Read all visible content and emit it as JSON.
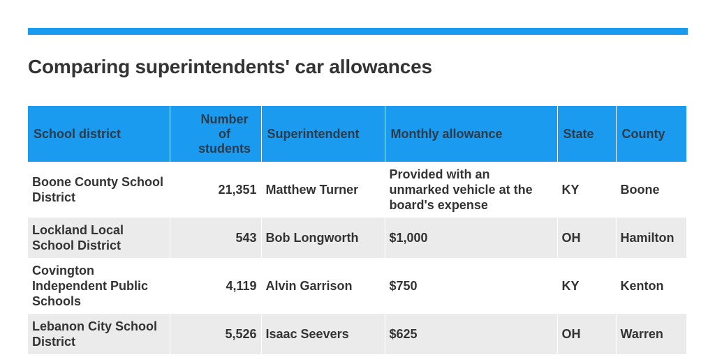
{
  "title": "Comparing superintendents' car allowances",
  "accent_color": "#1a9bf0",
  "table": {
    "headers": {
      "district": "School district",
      "students": "Number of students",
      "superintendent": "Superintendent",
      "allowance": "Monthly allowance",
      "state": "State",
      "county": "County"
    },
    "rows": [
      {
        "district": "Boone County School District",
        "students": "21,351",
        "superintendent": "Matthew Turner",
        "allowance": "Provided with an unmarked vehicle at the board's expense",
        "state": "KY",
        "county": "Boone"
      },
      {
        "district": "Lockland Local School District",
        "students": "543",
        "superintendent": "Bob Longworth",
        "allowance": "$1,000",
        "state": "OH",
        "county": "Hamilton"
      },
      {
        "district": "Covington Independent Public Schools",
        "students": "4,119",
        "superintendent": "Alvin Garrison",
        "allowance": "$750",
        "state": "KY",
        "county": "Kenton"
      },
      {
        "district": "Lebanon City School District",
        "students": "5,526",
        "superintendent": "Isaac Seevers",
        "allowance": "$625",
        "state": "OH",
        "county": "Warren"
      }
    ]
  }
}
